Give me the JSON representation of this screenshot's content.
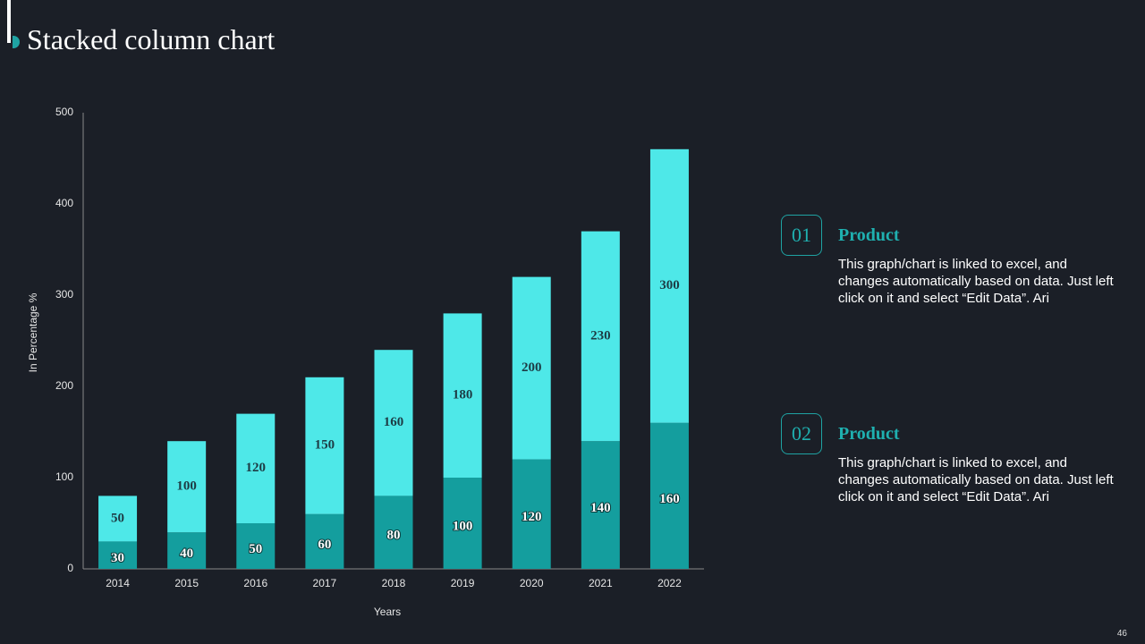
{
  "title": "Stacked column chart",
  "chart_data": {
    "type": "bar",
    "stacked": true,
    "x_label": "Years",
    "y_label": "In Percentage %",
    "categories": [
      "2014",
      "2015",
      "2016",
      "2017",
      "2018",
      "2019",
      "2020",
      "2021",
      "2022"
    ],
    "series": [
      {
        "color": "#149e9e",
        "values": [
          30,
          40,
          50,
          60,
          80,
          100,
          120,
          140,
          160
        ]
      },
      {
        "color": "#4ee8e8",
        "values": [
          50,
          100,
          120,
          150,
          160,
          180,
          200,
          230,
          300
        ]
      }
    ],
    "ylim": [
      0,
      500
    ],
    "yticks": [
      0,
      100,
      200,
      300,
      400,
      500
    ],
    "grid": false
  },
  "panels": [
    {
      "number": "01",
      "heading": "Product",
      "text": "This graph/chart is linked to excel, and changes automatically based on data. Just left click on it and select “Edit Data”. Ari"
    },
    {
      "number": "02",
      "heading": "Product",
      "text": "This graph/chart is linked to excel, and changes automatically based on data. Just left click on it and select “Edit Data”. Ari"
    }
  ],
  "page_number": "46"
}
